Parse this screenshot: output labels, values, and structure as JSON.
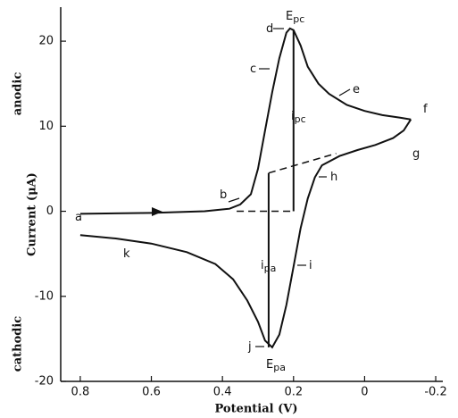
{
  "chart_data": {
    "type": "line",
    "x_label": "Potential (V)",
    "y_label": "Current (μA)",
    "y_upper_label": "anodic",
    "y_lower_label": "cathodic",
    "xlim": [
      0.855,
      -0.22
    ],
    "ylim": [
      -20,
      24
    ],
    "xticks": [
      0.8,
      0.6,
      0.4,
      0.2,
      0,
      -0.2
    ],
    "yticks": [
      -20,
      -10,
      0,
      10,
      20
    ],
    "color": "#111111",
    "series": [
      {
        "x": [
          0.8,
          0.6,
          0.45,
          0.38,
          0.35,
          0.32,
          0.3,
          0.28,
          0.26,
          0.24,
          0.22,
          0.21,
          0.2,
          0.18,
          0.16,
          0.13,
          0.1,
          0.05,
          0,
          -0.05,
          -0.1,
          -0.13
        ],
        "values": [
          -0.3,
          -0.2,
          0,
          0.3,
          0.8,
          2,
          5,
          9.5,
          14,
          18,
          21,
          21.5,
          21.3,
          19.5,
          17,
          15,
          13.8,
          12.5,
          11.8,
          11.3,
          11,
          10.8
        ]
      },
      {
        "x": [
          -0.13,
          -0.11,
          -0.08,
          -0.03,
          0.02,
          0.07,
          0.12,
          0.14,
          0.16,
          0.18,
          0.2,
          0.22,
          0.24,
          0.26,
          0.28,
          0.3,
          0.33,
          0.37,
          0.42,
          0.5,
          0.6,
          0.7,
          0.8
        ],
        "values": [
          10.8,
          9.5,
          8.6,
          7.8,
          7.2,
          6.5,
          5.4,
          4,
          1.5,
          -2,
          -6.5,
          -11,
          -14.5,
          -16,
          -15.2,
          -13,
          -10.5,
          -8,
          -6.2,
          -4.8,
          -3.8,
          -3.2,
          -2.8
        ]
      }
    ],
    "guides": [
      {
        "x": [
          0.36,
          0.2
        ],
        "y": [
          0,
          0
        ]
      },
      {
        "x": [
          0.27,
          0.08
        ],
        "y": [
          4.5,
          6.8
        ]
      },
      {
        "x": [
          0.2,
          0.2
        ],
        "y": [
          0,
          21.3
        ]
      },
      {
        "x": [
          0.27,
          0.27
        ],
        "y": [
          4.5,
          -16
        ]
      }
    ],
    "annotations": [
      {
        "main": "a"
      },
      {
        "main": "b"
      },
      {
        "main": "c"
      },
      {
        "main": "d"
      },
      {
        "main": "E",
        "sub": "pc"
      },
      {
        "main": "e"
      },
      {
        "main": "f"
      },
      {
        "main": "g"
      },
      {
        "main": "h"
      },
      {
        "main": "i",
        "sub": "pc"
      },
      {
        "main": "i",
        "sub": "pa"
      },
      {
        "main": "i"
      },
      {
        "main": "j"
      },
      {
        "main": "E",
        "sub": "pa"
      },
      {
        "main": "k"
      }
    ]
  }
}
